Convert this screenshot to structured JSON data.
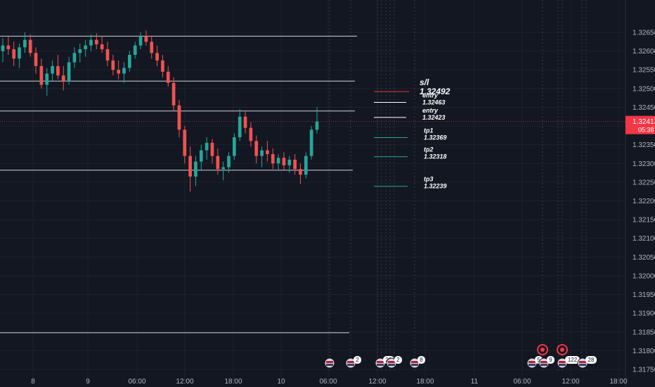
{
  "colors": {
    "background": "#131722",
    "grid": "#1e222d",
    "up": "#26a69a",
    "down": "#ef5350",
    "hline": "#d1d4dc",
    "sl": "#e53935",
    "entry": "#ffffff",
    "tp": "#26a69a",
    "current_price_bg": "#f23645"
  },
  "price_axis": {
    "ticks": [
      "1.32650",
      "1.32600",
      "1.32550",
      "1.32500",
      "1.32450",
      "1.32400",
      "1.32350",
      "1.32300",
      "1.32250",
      "1.32200",
      "1.32150",
      "1.32100",
      "1.32050",
      "1.32000",
      "1.31950",
      "1.31900",
      "1.31850",
      "1.31800",
      "1.31750"
    ],
    "current_price": "1.32412",
    "countdown": "05:38"
  },
  "time_axis": {
    "ticks": [
      "8",
      "9",
      "06:00",
      "12:00",
      "18:00",
      "10",
      "06:00",
      "12:00",
      "18:00",
      "11",
      "06:00",
      "12:00",
      "18:00"
    ]
  },
  "horizontal_lines": [
    {
      "price": 1.3264
    },
    {
      "price": 1.3252
    },
    {
      "price": 1.3244
    },
    {
      "price": 1.32282
    },
    {
      "price": 1.31848
    }
  ],
  "annotations": [
    {
      "name": "sl",
      "label": "s/l",
      "value": "1.32492",
      "price": 1.32492,
      "kind": "sl"
    },
    {
      "name": "entry1",
      "label": "entry",
      "value": "1.32463",
      "price": 1.32463,
      "kind": "entry"
    },
    {
      "name": "entry2",
      "label": "entry",
      "value": "1.32423",
      "price": 1.32423,
      "kind": "entry"
    },
    {
      "name": "tp1",
      "label": "tp1",
      "value": "1.32369",
      "price": 1.32369,
      "kind": "tp"
    },
    {
      "name": "tp2",
      "label": "tp2",
      "value": "1.32318",
      "price": 1.32318,
      "kind": "tp"
    },
    {
      "name": "tp3",
      "label": "tp3",
      "value": "1.32239",
      "price": 1.32239,
      "kind": "tp"
    }
  ],
  "event_markers": [
    {
      "count": ""
    },
    {
      "count": "2"
    },
    {
      "count": "22"
    },
    {
      "count": "2"
    },
    {
      "count": "8"
    },
    {
      "count": "5"
    },
    {
      "count": "9"
    },
    {
      "count": "122"
    },
    {
      "count": "28"
    }
  ],
  "chart_data": {
    "type": "candlestick",
    "ylim": [
      1.31735,
      1.32675
    ],
    "ohlc": [
      [
        1.326,
        1.32635,
        1.3257,
        1.32615
      ],
      [
        1.32615,
        1.3264,
        1.3259,
        1.32605
      ],
      [
        1.32605,
        1.32625,
        1.3256,
        1.3258
      ],
      [
        1.3258,
        1.3262,
        1.32555,
        1.3261
      ],
      [
        1.3261,
        1.3265,
        1.32595,
        1.3263
      ],
      [
        1.3263,
        1.32645,
        1.32585,
        1.32595
      ],
      [
        1.32595,
        1.3261,
        1.3254,
        1.3256
      ],
      [
        1.3256,
        1.3258,
        1.325,
        1.3251
      ],
      [
        1.3251,
        1.32555,
        1.3248,
        1.3254
      ],
      [
        1.3254,
        1.32575,
        1.3252,
        1.3256
      ],
      [
        1.3256,
        1.3259,
        1.32525,
        1.32535
      ],
      [
        1.32535,
        1.3256,
        1.32495,
        1.3252
      ],
      [
        1.3252,
        1.32585,
        1.3251,
        1.3257
      ],
      [
        1.3257,
        1.3261,
        1.32555,
        1.32595
      ],
      [
        1.32595,
        1.3262,
        1.3257,
        1.32605
      ],
      [
        1.32605,
        1.3263,
        1.32585,
        1.32615
      ],
      [
        1.32615,
        1.32645,
        1.326,
        1.3263
      ],
      [
        1.3263,
        1.32648,
        1.32605,
        1.32618
      ],
      [
        1.32618,
        1.3264,
        1.32595,
        1.32605
      ],
      [
        1.32605,
        1.32625,
        1.3256,
        1.32575
      ],
      [
        1.32575,
        1.3259,
        1.32535,
        1.3255
      ],
      [
        1.3255,
        1.32575,
        1.32525,
        1.3254
      ],
      [
        1.3254,
        1.3257,
        1.32515,
        1.32555
      ],
      [
        1.32555,
        1.326,
        1.32545,
        1.3259
      ],
      [
        1.3259,
        1.32625,
        1.3258,
        1.32615
      ],
      [
        1.32615,
        1.3265,
        1.32605,
        1.3264
      ],
      [
        1.3264,
        1.32655,
        1.32615,
        1.32625
      ],
      [
        1.32625,
        1.3264,
        1.3258,
        1.32595
      ],
      [
        1.32595,
        1.32615,
        1.3256,
        1.32575
      ],
      [
        1.32575,
        1.3259,
        1.3253,
        1.32545
      ],
      [
        1.32545,
        1.3256,
        1.32505,
        1.32515
      ],
      [
        1.32515,
        1.3253,
        1.3244,
        1.32455
      ],
      [
        1.32455,
        1.3247,
        1.3237,
        1.3239
      ],
      [
        1.3239,
        1.324,
        1.323,
        1.3232
      ],
      [
        1.3232,
        1.32345,
        1.32225,
        1.32265
      ],
      [
        1.32265,
        1.3232,
        1.3224,
        1.32305
      ],
      [
        1.32305,
        1.3235,
        1.3228,
        1.32335
      ],
      [
        1.32335,
        1.3237,
        1.3231,
        1.32355
      ],
      [
        1.32355,
        1.32365,
        1.323,
        1.3232
      ],
      [
        1.3232,
        1.3234,
        1.3227,
        1.32285
      ],
      [
        1.32285,
        1.32305,
        1.32255,
        1.3229
      ],
      [
        1.3229,
        1.3233,
        1.32275,
        1.3232
      ],
      [
        1.3232,
        1.3238,
        1.3231,
        1.3237
      ],
      [
        1.3237,
        1.32445,
        1.3236,
        1.32425
      ],
      [
        1.32425,
        1.3244,
        1.3238,
        1.32395
      ],
      [
        1.32395,
        1.3241,
        1.32345,
        1.3236
      ],
      [
        1.3236,
        1.32375,
        1.323,
        1.3232
      ],
      [
        1.3232,
        1.32345,
        1.3229,
        1.32335
      ],
      [
        1.32335,
        1.3236,
        1.32305,
        1.32325
      ],
      [
        1.32325,
        1.3234,
        1.32285,
        1.323
      ],
      [
        1.323,
        1.32325,
        1.3228,
        1.32315
      ],
      [
        1.32315,
        1.3233,
        1.3228,
        1.32295
      ],
      [
        1.32295,
        1.3232,
        1.32275,
        1.3231
      ],
      [
        1.3231,
        1.32325,
        1.3227,
        1.32285
      ],
      [
        1.32285,
        1.323,
        1.32245,
        1.3227
      ],
      [
        1.3227,
        1.3233,
        1.3226,
        1.3232
      ],
      [
        1.3232,
        1.324,
        1.3231,
        1.3239
      ],
      [
        1.3239,
        1.3245,
        1.3238,
        1.32412
      ]
    ]
  }
}
